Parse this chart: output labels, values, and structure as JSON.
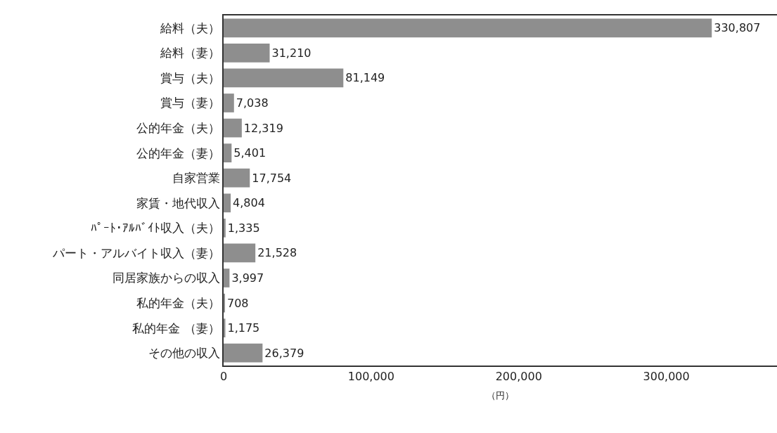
{
  "chart_data": {
    "type": "bar",
    "orientation": "horizontal",
    "xlabel": "（円）",
    "categories": [
      "給料（夫）",
      "給料（妻）",
      "賞与（夫）",
      "賞与（妻）",
      "公的年金（夫）",
      "公的年金（妻）",
      "自家営業",
      "家賃・地代収入",
      "ﾊﾟｰﾄ･ｱﾙﾊﾞｲﾄ収入（夫）",
      "パート・アルバイト収入（妻）",
      "同居家族からの収入",
      "私的年金（夫）",
      "私的年金 （妻）",
      "その他の収入"
    ],
    "values": [
      330807,
      31210,
      81149,
      7038,
      12319,
      5401,
      17754,
      4804,
      1335,
      21528,
      3997,
      708,
      1175,
      26379
    ],
    "value_labels": [
      "330,807",
      "31,210",
      "81,149",
      "7,038",
      "12,319",
      "5,401",
      "17,754",
      "4,804",
      "1,335",
      "21,528",
      "3,997",
      "708",
      "1,175",
      "26,379"
    ],
    "color": "#8e8e8e",
    "xlim": [
      0,
      375000
    ],
    "xticks": [
      0,
      {
        "value": 100000,
        "label": "100,000"
      },
      {
        "value": 200000,
        "label": "200,000"
      },
      {
        "value": 300000,
        "label": "300,000"
      }
    ]
  }
}
